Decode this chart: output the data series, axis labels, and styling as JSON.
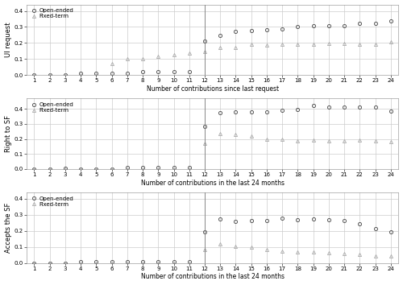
{
  "panel1": {
    "ylabel": "UI request",
    "xlabel": "Number of contributions since last request",
    "open_ended": [
      0.0,
      0.0,
      0.0,
      0.01,
      0.01,
      0.01,
      0.01,
      0.02,
      0.02,
      0.02,
      0.02,
      0.21,
      0.245,
      0.27,
      0.275,
      0.28,
      0.285,
      0.3,
      0.305,
      0.305,
      0.305,
      0.32,
      0.32,
      0.335
    ],
    "fixed_term": [
      0.0,
      0.0,
      0.0,
      0.0,
      0.0,
      0.07,
      0.1,
      0.1,
      0.115,
      0.125,
      0.135,
      0.145,
      0.17,
      0.17,
      0.19,
      0.185,
      0.19,
      0.19,
      0.19,
      0.195,
      0.195,
      0.19,
      0.19,
      0.205
    ],
    "ylim": [
      0,
      0.44
    ],
    "yticks": [
      0.0,
      0.1,
      0.2,
      0.3,
      0.4
    ]
  },
  "panel2": {
    "ylabel": "Right to SF",
    "xlabel": "Number of contributions in the last 24 months",
    "open_ended": [
      0.0,
      0.0,
      0.005,
      0.0,
      0.0,
      0.0,
      0.01,
      0.01,
      0.01,
      0.01,
      0.01,
      0.285,
      0.375,
      0.38,
      0.38,
      0.38,
      0.39,
      0.395,
      0.42,
      0.41,
      0.41,
      0.41,
      0.41,
      0.385
    ],
    "fixed_term": [
      0.0,
      0.0,
      0.0,
      0.0,
      0.0,
      0.0,
      0.0,
      0.0,
      0.0,
      0.0,
      0.0,
      0.17,
      0.235,
      0.23,
      0.22,
      0.2,
      0.195,
      0.185,
      0.19,
      0.185,
      0.185,
      0.19,
      0.185,
      0.18
    ],
    "ylim": [
      0,
      0.47
    ],
    "yticks": [
      0.0,
      0.1,
      0.2,
      0.3,
      0.4
    ]
  },
  "panel3": {
    "ylabel": "Accepts the SF",
    "xlabel": "Number of contributions in the last 24 months",
    "open_ended": [
      0.0,
      0.0,
      0.0,
      0.01,
      0.01,
      0.01,
      0.01,
      0.01,
      0.01,
      0.01,
      0.01,
      0.195,
      0.275,
      0.26,
      0.265,
      0.265,
      0.28,
      0.27,
      0.275,
      0.27,
      0.265,
      0.245,
      0.215,
      0.195
    ],
    "fixed_term": [
      0.0,
      0.0,
      0.0,
      0.0,
      0.0,
      0.0,
      0.0,
      0.0,
      0.0,
      0.0,
      0.0,
      0.085,
      0.12,
      0.105,
      0.1,
      0.085,
      0.075,
      0.07,
      0.07,
      0.065,
      0.06,
      0.055,
      0.045,
      0.045
    ],
    "ylim": [
      0,
      0.44
    ],
    "yticks": [
      0.0,
      0.1,
      0.2,
      0.3,
      0.4
    ]
  },
  "vline_x": 12,
  "open_color": "#444444",
  "fixed_color": "#aaaaaa",
  "background_color": "#ffffff",
  "grid_color": "#cccccc",
  "legend_open": "Open-ended",
  "legend_fixed": "Fixed-term",
  "marker_open": "o",
  "marker_fixed": "^",
  "marker_size": 3.0,
  "fontsize": 6.0,
  "xlabel_fontsize": 5.5,
  "ylabel_fontsize": 6.0,
  "tick_fontsize": 5.0
}
